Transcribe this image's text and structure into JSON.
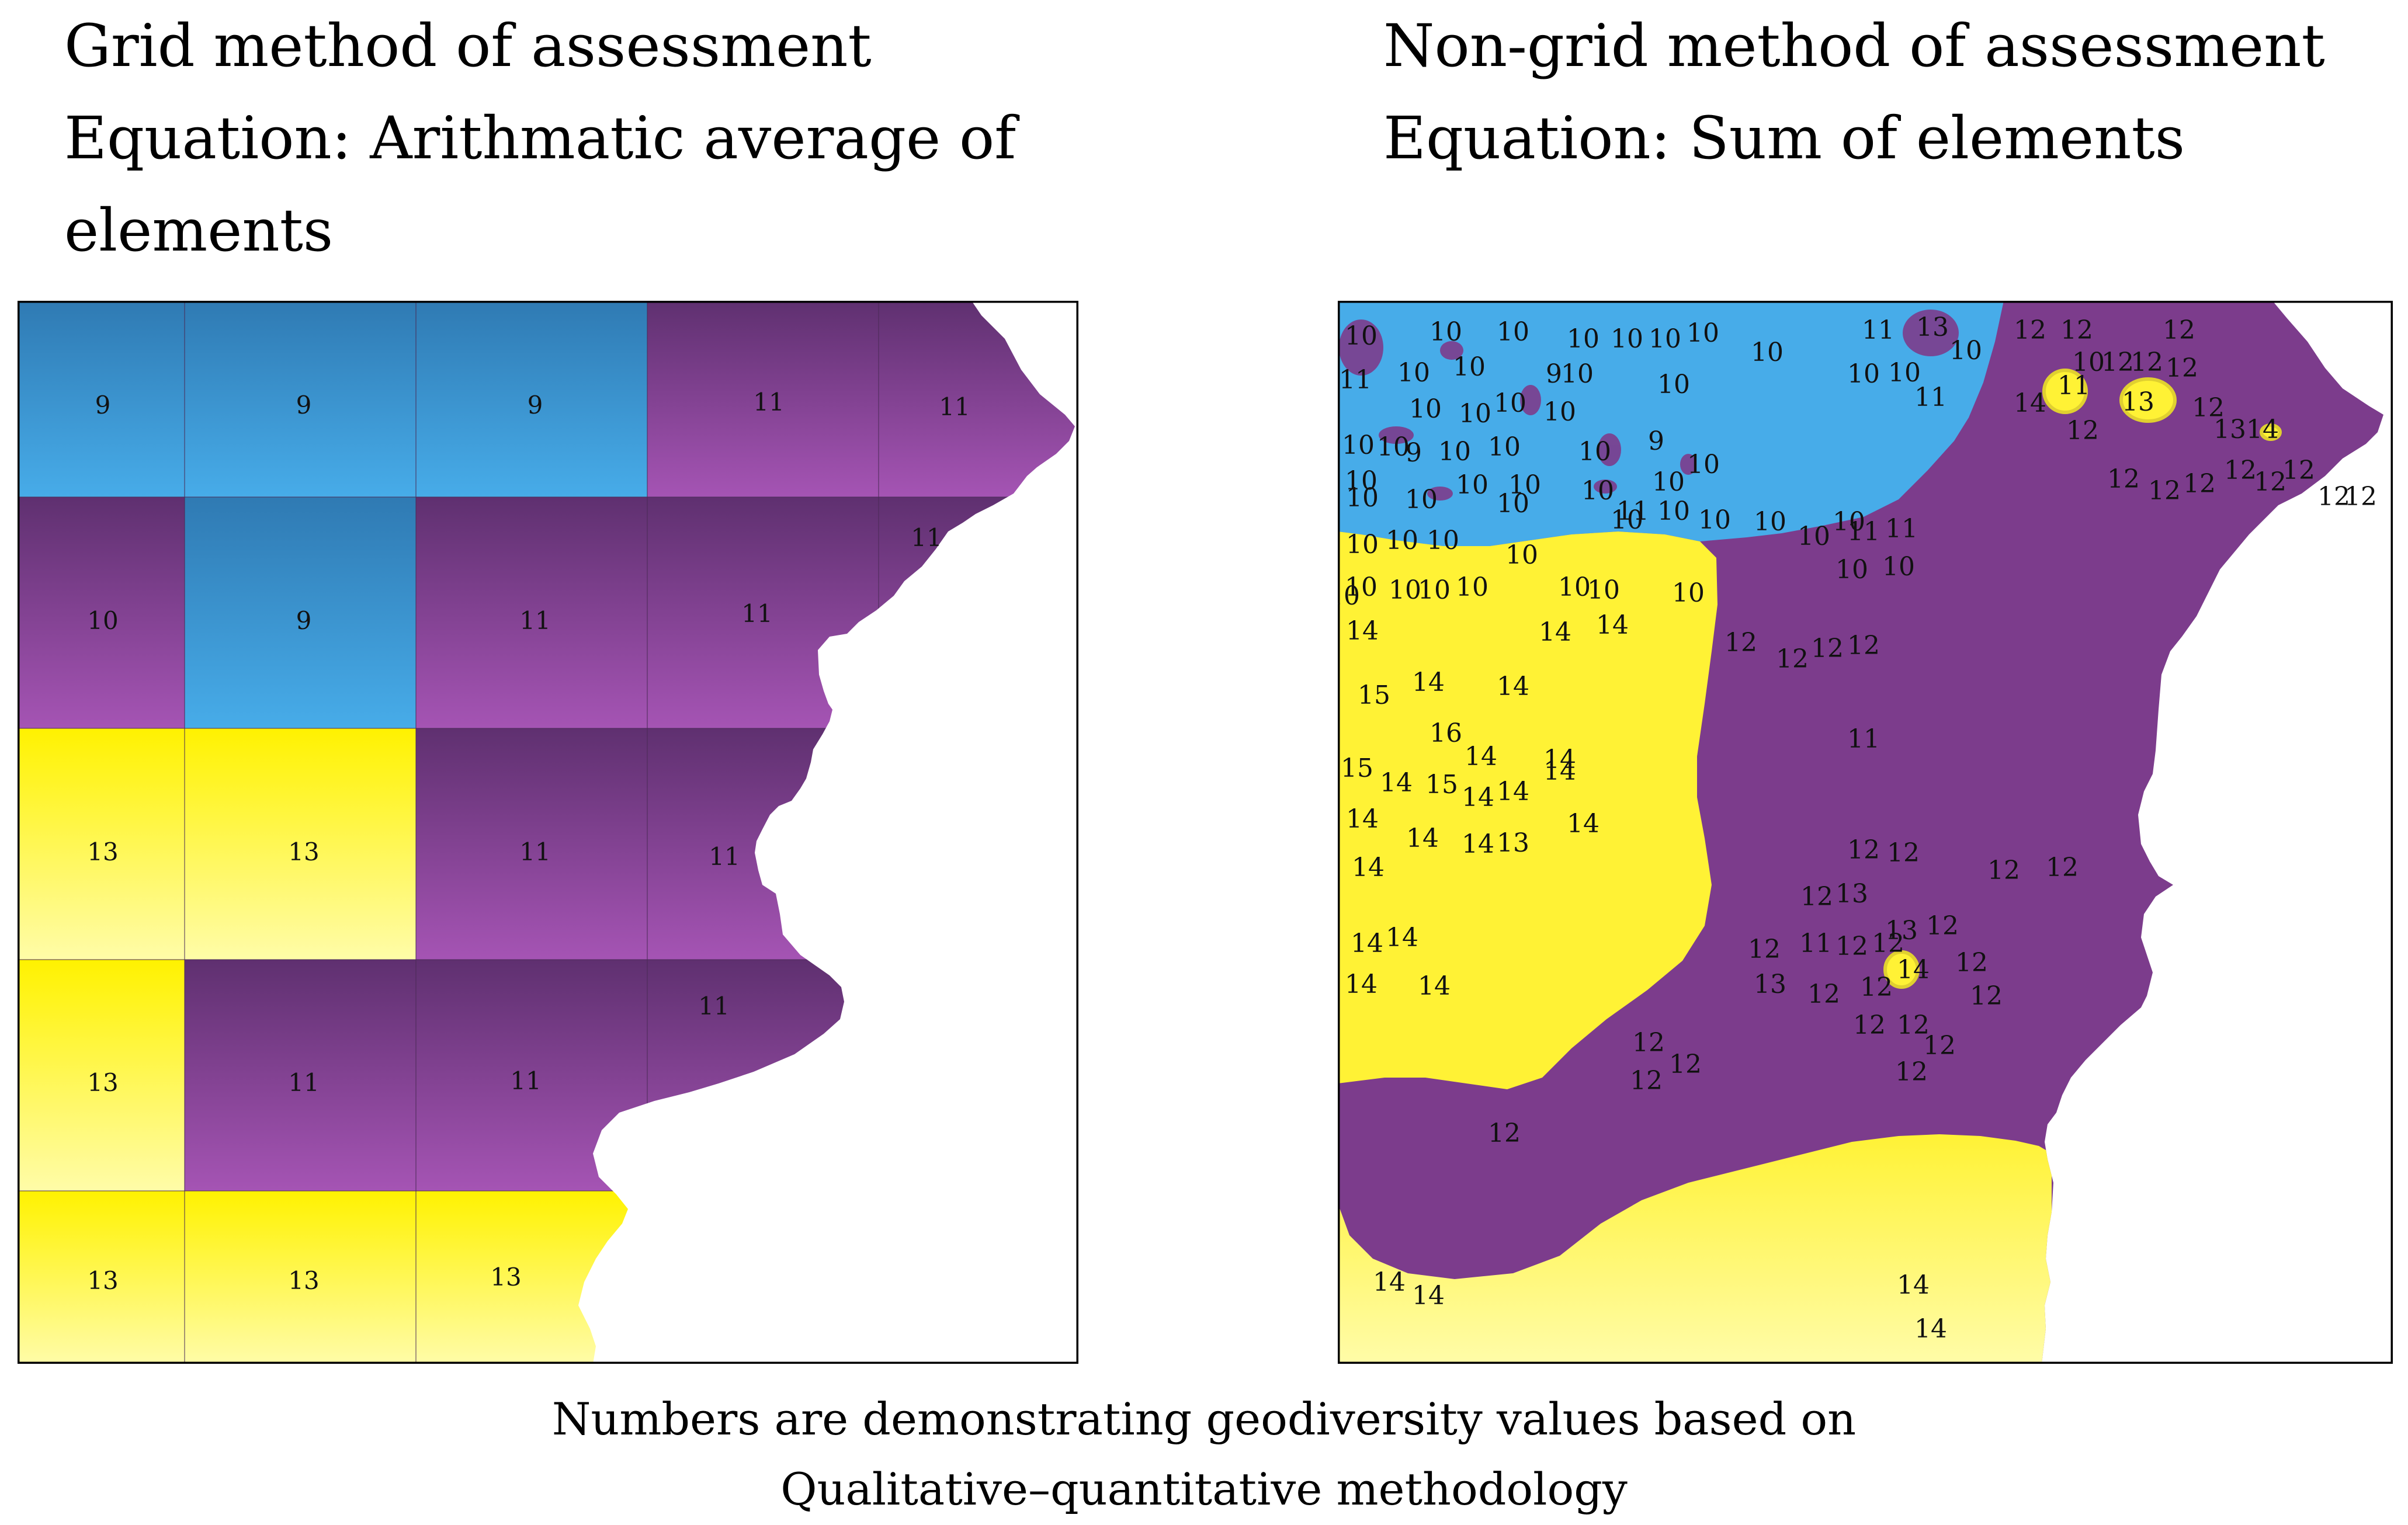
{
  "figure": {
    "left_title": [
      "Grid method of assessment",
      "Equation: Arithmatic average of",
      "elements"
    ],
    "right_title": [
      "Non-grid method of assessment",
      "Equation: Sum of elements"
    ],
    "caption": [
      "Numbers are demonstrating geodiversity values based on",
      "Qualitative–quantitative methodology"
    ]
  },
  "colors": {
    "blue_light": "#47ACE9",
    "blue_dark": "#2F7AB3",
    "purple_light": "#A554B4",
    "purple_dark": "#5F3070",
    "purple": "#7C3C8C",
    "yellow": "#FFF235",
    "yellow_light": "#FFFCA8",
    "border": "#000000"
  },
  "grid_map": {
    "rows": [
      [
        "9",
        "9",
        "9",
        "11",
        "11"
      ],
      [
        "10",
        "9",
        "11",
        "11",
        "11"
      ],
      [
        "13",
        "13",
        "11",
        "11"
      ],
      [
        "13",
        "11",
        "11",
        "11"
      ],
      [
        "13",
        "13",
        "13"
      ]
    ]
  },
  "nongrid_map": {
    "labels": [
      "10",
      "10",
      "10",
      "10",
      "10",
      "10",
      "10",
      "10",
      "11",
      "13",
      "10",
      "12",
      "12",
      "12",
      "11",
      "10",
      "10",
      "9",
      "10",
      "10",
      "10",
      "10",
      "10",
      "12",
      "12",
      "12",
      "11",
      "10",
      "10",
      "10",
      "10",
      "11",
      "14",
      "12",
      "13",
      "12",
      "10",
      "10",
      "9",
      "10",
      "10",
      "10",
      "9",
      "12",
      "12",
      "1314",
      "10",
      "10",
      "10",
      "10",
      "10",
      "10",
      "10",
      "12",
      "12",
      "12",
      "12",
      "12",
      "10",
      "10",
      "11",
      "10",
      "10",
      "10",
      "10",
      "10",
      "11",
      "11",
      "12",
      "10",
      "10",
      "10",
      "10",
      "10",
      "10",
      "10",
      "10",
      "10",
      "10",
      "10",
      "10",
      "10",
      "10",
      "10",
      "14",
      "14",
      "14",
      "12",
      "12",
      "12",
      "15",
      "14",
      "14",
      "12",
      "16",
      "14",
      "14",
      "11",
      "15",
      "14",
      "15",
      "14",
      "14",
      "14",
      "14",
      "14",
      "14",
      "13",
      "14",
      "12",
      "12",
      "12",
      "12",
      "14",
      "12",
      "13",
      "14",
      "14",
      "12",
      "11",
      "12",
      "12",
      "13",
      "12",
      "12",
      "14",
      "14",
      "13",
      "14",
      "12",
      "12",
      "12",
      "12",
      "12",
      "12",
      "12",
      "12",
      "12",
      "12",
      "12",
      "14",
      "14",
      "14",
      "14"
    ]
  }
}
